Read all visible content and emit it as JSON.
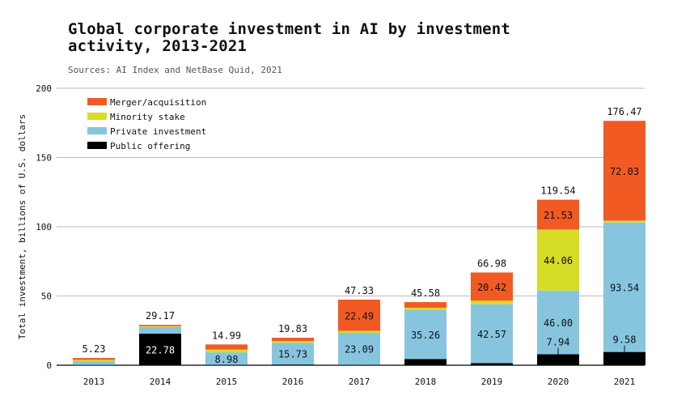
{
  "title": "Global corporate investment in AI by investment activity, 2013-2021",
  "subtitle": "Sources: AI Index and NetBase Quid, 2021",
  "chart_data": {
    "type": "bar",
    "stacked": true,
    "categories": [
      "2013",
      "2014",
      "2015",
      "2016",
      "2017",
      "2018",
      "2019",
      "2020",
      "2021"
    ],
    "ylabel": "Total investment, billions of U.S. dollars",
    "xlabel": "",
    "ylim": [
      0,
      200
    ],
    "yticks": [
      0,
      50,
      100,
      150,
      200
    ],
    "grid": true,
    "legend_position": "top-left",
    "totals": [
      5.23,
      29.17,
      14.99,
      19.83,
      47.33,
      45.58,
      66.98,
      119.54,
      176.47
    ],
    "series": [
      {
        "name": "Public offering",
        "color": "#000000",
        "text_color": "#ffffff",
        "values": [
          0.2,
          22.78,
          0.3,
          0.5,
          0.3,
          4.5,
          1.5,
          7.94,
          9.58
        ],
        "labels": [
          "",
          "22.78",
          "",
          "",
          "",
          "",
          "",
          "7.94",
          "9.58"
        ]
      },
      {
        "name": "Private investment",
        "color": "#87c5df",
        "text_color": "#111111",
        "values": [
          2.7,
          4.9,
          8.98,
          15.73,
          23.09,
          35.26,
          42.57,
          46.0,
          93.54
        ],
        "labels": [
          "",
          "",
          "8.98",
          "15.73",
          "23.09",
          "35.26",
          "42.57",
          "46.00",
          "93.54"
        ]
      },
      {
        "name": "Minority stake",
        "color": "#d7dc26",
        "text_color": "#111111",
        "values": [
          1.0,
          0.5,
          2.0,
          1.3,
          1.45,
          1.8,
          2.49,
          44.06,
          1.32
        ],
        "labels": [
          "",
          "",
          "",
          "",
          "",
          "",
          "",
          "44.06",
          ""
        ]
      },
      {
        "name": "Merger/acquisition",
        "color": "#f15a22",
        "text_color": "#111111",
        "values": [
          1.33,
          0.99,
          3.71,
          2.3,
          22.49,
          4.02,
          20.42,
          21.53,
          72.03
        ],
        "labels": [
          "",
          "",
          "",
          "",
          "22.49",
          "",
          "20.42",
          "21.53",
          "72.03"
        ]
      }
    ],
    "legend_order": [
      "Merger/acquisition",
      "Minority stake",
      "Private investment",
      "Public offering"
    ]
  }
}
